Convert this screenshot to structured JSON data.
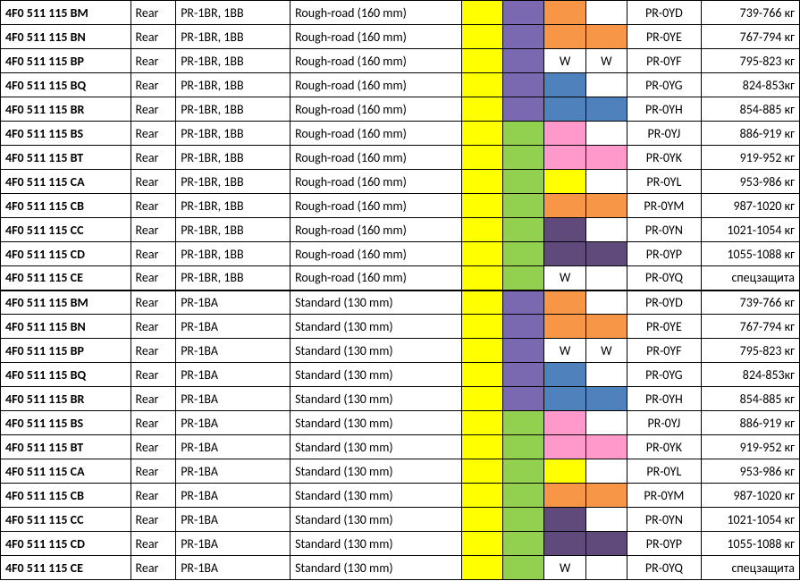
{
  "colors": {
    "yellow": "#ffff00",
    "purple": "#7a69b0",
    "orange": "#f79646",
    "blue": "#4f81bd",
    "green": "#92d050",
    "pink": "#ff99cc",
    "darkpurple": "#604a7b",
    "white": "#ffffff"
  },
  "sections": [
    {
      "pr": "PR-1BR, 1BB",
      "desc": "Rough-road (160 mm)",
      "rows": [
        {
          "part": "4F0 511 115 BM",
          "c1": "yellow",
          "c2": "purple",
          "c3": "orange",
          "c4": "white",
          "t3": "",
          "t4": "",
          "code": "PR-0YD",
          "w": "739-766 кг"
        },
        {
          "part": "4F0 511 115 BN",
          "c1": "yellow",
          "c2": "purple",
          "c3": "orange",
          "c4": "orange",
          "t3": "",
          "t4": "",
          "code": "PR-0YE",
          "w": "767-794 кг"
        },
        {
          "part": "4F0 511 115 BP",
          "c1": "yellow",
          "c2": "purple",
          "c3": "white",
          "c4": "white",
          "t3": "W",
          "t4": "W",
          "code": "PR-0YF",
          "w": "795-823 кг"
        },
        {
          "part": "4F0 511 115 BQ",
          "c1": "yellow",
          "c2": "purple",
          "c3": "blue",
          "c4": "white",
          "t3": "",
          "t4": "",
          "code": "PR-0YG",
          "w": "824-853кг"
        },
        {
          "part": "4F0 511 115 BR",
          "c1": "yellow",
          "c2": "purple",
          "c3": "blue",
          "c4": "blue",
          "t3": "",
          "t4": "",
          "code": "PR-0YH",
          "w": "854-885 кг"
        },
        {
          "part": "4F0 511 115 BS",
          "c1": "yellow",
          "c2": "green",
          "c3": "pink",
          "c4": "white",
          "t3": "",
          "t4": "",
          "code": "PR-0YJ",
          "w": "886-919 кг"
        },
        {
          "part": "4F0 511 115 BT",
          "c1": "yellow",
          "c2": "green",
          "c3": "pink",
          "c4": "pink",
          "t3": "",
          "t4": "",
          "code": "PR-0YK",
          "w": "919-952 кг"
        },
        {
          "part": "4F0 511 115 CA",
          "c1": "yellow",
          "c2": "green",
          "c3": "yellow",
          "c4": "white",
          "t3": "",
          "t4": "",
          "code": "PR-0YL",
          "w": "953-986 кг"
        },
        {
          "part": "4F0 511 115 CB",
          "c1": "yellow",
          "c2": "green",
          "c3": "orange",
          "c4": "orange",
          "t3": "",
          "t4": "",
          "code": "PR-0YM",
          "w": "987-1020 кг"
        },
        {
          "part": "4F0 511 115 CC",
          "c1": "yellow",
          "c2": "green",
          "c3": "darkpurple",
          "c4": "white",
          "t3": "",
          "t4": "",
          "code": "PR-0YN",
          "w": "1021-1054 кг"
        },
        {
          "part": "4F0 511 115 CD",
          "c1": "yellow",
          "c2": "green",
          "c3": "darkpurple",
          "c4": "darkpurple",
          "t3": "",
          "t4": "",
          "code": "PR-0YP",
          "w": "1055-1088 кг"
        },
        {
          "part": "4F0 511 115 CE",
          "c1": "yellow",
          "c2": "green",
          "c3": "white",
          "c4": "white",
          "t3": "W",
          "t4": "",
          "code": "PR-0YQ",
          "w": "спецзащита"
        }
      ]
    },
    {
      "pr": "PR-1BA",
      "desc": "Standard (130 mm)",
      "rows": [
        {
          "part": "4F0 511 115 BM",
          "c1": "yellow",
          "c2": "purple",
          "c3": "orange",
          "c4": "white",
          "t3": "",
          "t4": "",
          "code": "PR-0YD",
          "w": "739-766 кг"
        },
        {
          "part": "4F0 511 115 BN",
          "c1": "yellow",
          "c2": "purple",
          "c3": "orange",
          "c4": "orange",
          "t3": "",
          "t4": "",
          "code": "PR-0YE",
          "w": "767-794 кг"
        },
        {
          "part": "4F0 511 115 BP",
          "c1": "yellow",
          "c2": "purple",
          "c3": "white",
          "c4": "white",
          "t3": "W",
          "t4": "W",
          "code": "PR-0YF",
          "w": "795-823 кг"
        },
        {
          "part": "4F0 511 115 BQ",
          "c1": "yellow",
          "c2": "purple",
          "c3": "blue",
          "c4": "white",
          "t3": "",
          "t4": "",
          "code": "PR-0YG",
          "w": "824-853кг"
        },
        {
          "part": "4F0 511 115 BR",
          "c1": "yellow",
          "c2": "purple",
          "c3": "blue",
          "c4": "blue",
          "t3": "",
          "t4": "",
          "code": "PR-0YH",
          "w": "854-885 кг"
        },
        {
          "part": "4F0 511 115 BS",
          "c1": "yellow",
          "c2": "green",
          "c3": "pink",
          "c4": "white",
          "t3": "",
          "t4": "",
          "code": "PR-0YJ",
          "w": "886-919 кг"
        },
        {
          "part": "4F0 511 115 BT",
          "c1": "yellow",
          "c2": "green",
          "c3": "pink",
          "c4": "pink",
          "t3": "",
          "t4": "",
          "code": "PR-0YK",
          "w": "919-952 кг"
        },
        {
          "part": "4F0 511 115 CA",
          "c1": "yellow",
          "c2": "green",
          "c3": "yellow",
          "c4": "white",
          "t3": "",
          "t4": "",
          "code": "PR-0YL",
          "w": "953-986 кг"
        },
        {
          "part": "4F0 511 115 CB",
          "c1": "yellow",
          "c2": "green",
          "c3": "orange",
          "c4": "orange",
          "t3": "",
          "t4": "",
          "code": "PR-0YM",
          "w": "987-1020 кг"
        },
        {
          "part": "4F0 511 115 CC",
          "c1": "yellow",
          "c2": "green",
          "c3": "darkpurple",
          "c4": "white",
          "t3": "",
          "t4": "",
          "code": "PR-0YN",
          "w": "1021-1054 кг"
        },
        {
          "part": "4F0 511 115 CD",
          "c1": "yellow",
          "c2": "green",
          "c3": "darkpurple",
          "c4": "darkpurple",
          "t3": "",
          "t4": "",
          "code": "PR-0YP",
          "w": "1055-1088 кг"
        },
        {
          "part": "4F0 511 115 CE",
          "c1": "yellow",
          "c2": "green",
          "c3": "white",
          "c4": "white",
          "t3": "W",
          "t4": "",
          "code": "PR-0YQ",
          "w": "спецзащита"
        }
      ]
    }
  ],
  "position_label": "Rear"
}
